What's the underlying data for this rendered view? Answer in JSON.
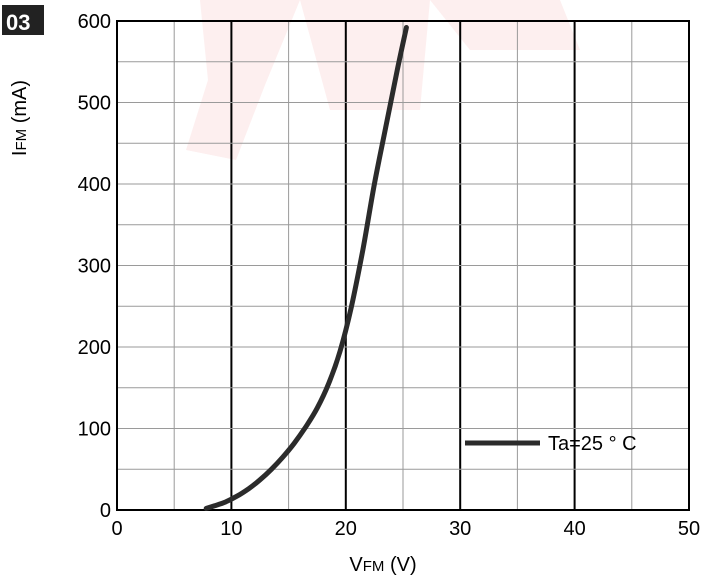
{
  "badge": {
    "label": "03"
  },
  "chart_data": {
    "type": "line",
    "xlabel": {
      "main": "V",
      "sub": "FM",
      "unit": " (V)"
    },
    "ylabel": {
      "main": "I",
      "sub": "FM",
      "unit": " (mA)"
    },
    "xlim": [
      0,
      50
    ],
    "ylim": [
      0,
      600
    ],
    "x_ticks": [
      0,
      10,
      20,
      30,
      40,
      50
    ],
    "y_ticks": [
      0,
      100,
      200,
      300,
      400,
      500,
      600
    ],
    "grid": "minor every 5 V / 50 mA, major vertical lines every 10 V",
    "legend_position": "bottom-right",
    "series": [
      {
        "name": "Ta=25 ° C",
        "color": "#2b2b2b",
        "x": [
          7.8,
          8.5,
          9.5,
          10.5,
          11.5,
          12.5,
          13.5,
          14.5,
          15.5,
          16.5,
          17.5,
          18.5,
          19.5,
          20.5,
          21.5,
          22.5,
          23.5,
          24.5,
          25.3
        ],
        "y": [
          2,
          5,
          10,
          17,
          26,
          37,
          50,
          65,
          82,
          102,
          125,
          155,
          195,
          250,
          320,
          400,
          470,
          540,
          592
        ]
      }
    ]
  }
}
